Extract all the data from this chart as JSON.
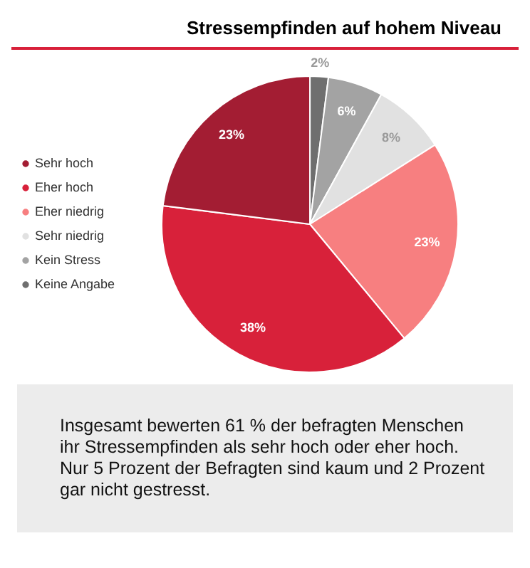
{
  "chart_data": {
    "type": "pie",
    "title": "Stressempfinden auf hohem Niveau",
    "categories": [
      "Sehr hoch",
      "Eher hoch",
      "Eher niedrig",
      "Sehr niedrig",
      "Kein Stress",
      "Keine Angabe"
    ],
    "values": [
      23,
      38,
      23,
      8,
      6,
      2
    ],
    "value_labels": [
      "23%",
      "38%",
      "23%",
      "8%",
      "6%",
      "2%"
    ],
    "colors": [
      "#a31d33",
      "#d8213a",
      "#f77f80",
      "#e1e1e1",
      "#a3a3a3",
      "#6f6f6f"
    ],
    "legend": "left",
    "annotations": [
      "Insgesamt bewerten 61 % der befragten Menschen ihr Stressempfinden als sehr hoch oder eher hoch. Nur 5 Prozent der Befragten sind kaum und 2 Prozent gar nicht gestresst."
    ]
  }
}
